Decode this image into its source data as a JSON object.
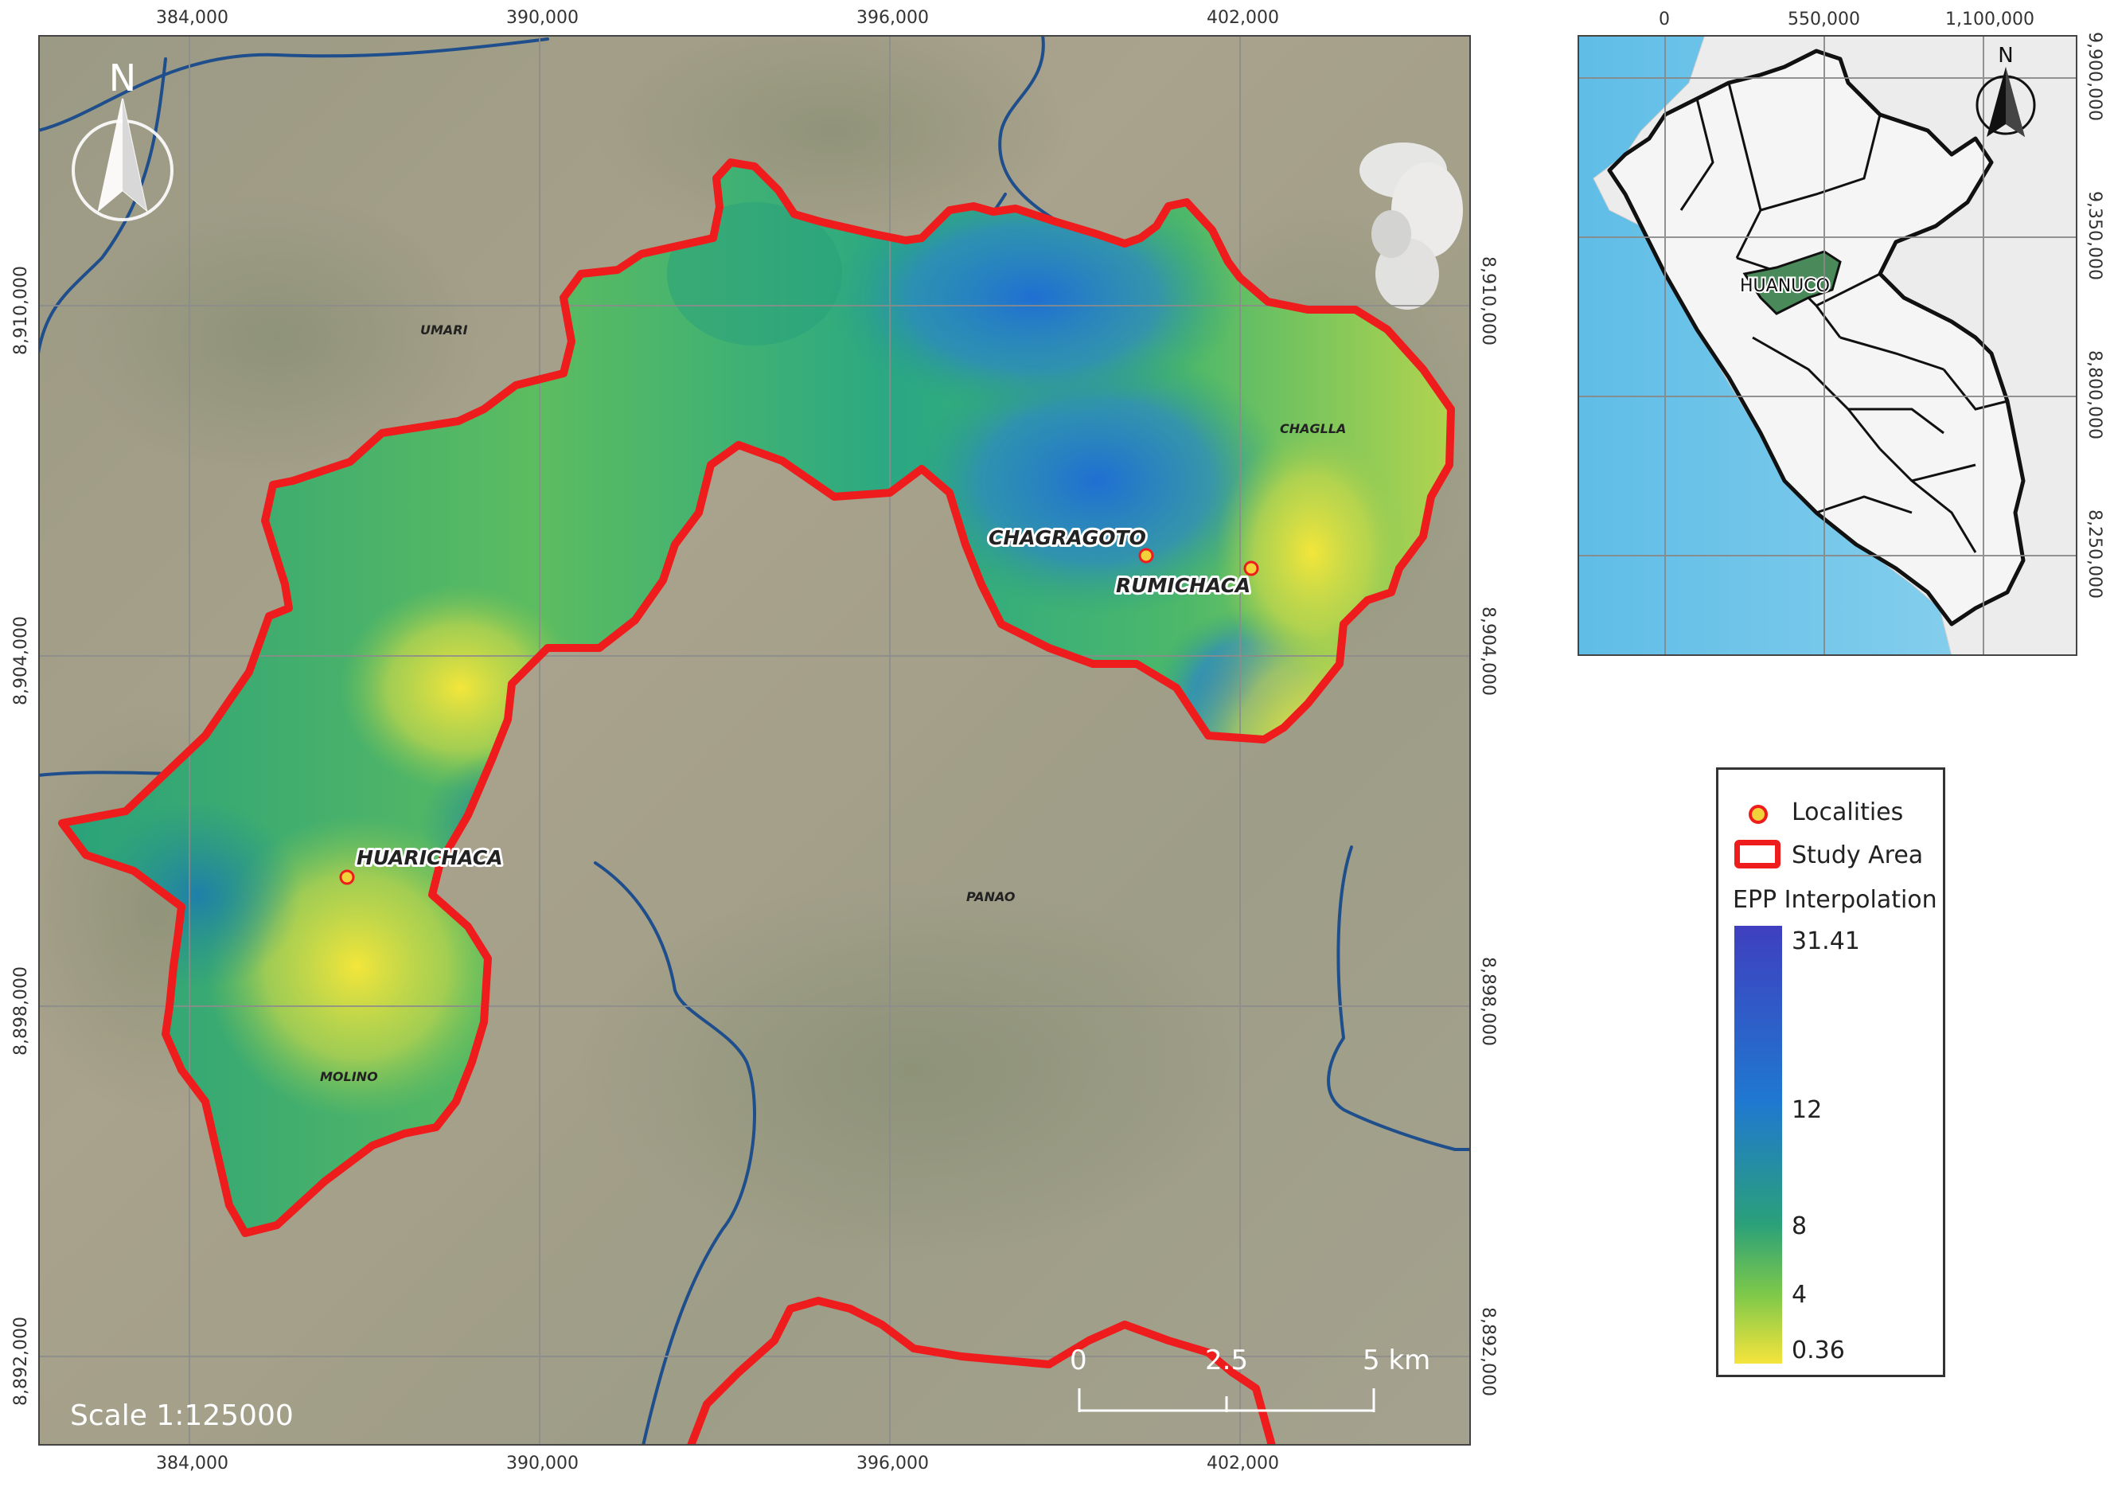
{
  "main_map": {
    "x_ticks": [
      "384,000",
      "390,000",
      "396,000",
      "402,000"
    ],
    "y_ticks": [
      "8,910,000",
      "8,904,000",
      "8,898,000",
      "8,892,000"
    ],
    "north_label": "N",
    "scale_text": "Scale 1:125000",
    "scalebar": {
      "labels": [
        "0",
        "2.5",
        "5 km"
      ]
    },
    "places": {
      "umari": "UMARI",
      "chaglla": "CHAGLLA",
      "panao": "PANAO",
      "molino": "MOLINO"
    },
    "localities": {
      "chagragoto": "CHAGRAGOTO",
      "rumichaca": "RUMICHACA",
      "huarichaca": "HUARICHACA"
    },
    "colors": {
      "study_area": "#ee1c1c",
      "rivers": "#1f4e8c",
      "high": "#2f7fd0",
      "mid": "#2aa07a",
      "low": "#f0e23c"
    }
  },
  "inset_map": {
    "x_ticks": [
      "0",
      "550,000",
      "1,100,000"
    ],
    "y_ticks": [
      "9,900,000",
      "9,350,000",
      "8,800,000",
      "8,250,000"
    ],
    "region_label": "HUANUCO",
    "north_label": "N",
    "colors": {
      "region": "#4a8a5a",
      "sea": "#6ec3e8"
    }
  },
  "legend": {
    "localities": "Localities",
    "study_area": "Study Area",
    "ramp_title": "EPP Interpolation",
    "ramp_labels": [
      "31.41",
      "12",
      "8",
      "4",
      "0.36"
    ],
    "ramp_colors": [
      "#3f3fbf",
      "#1f78d1",
      "#2aa07a",
      "#7cc84a",
      "#f5e43c"
    ]
  }
}
